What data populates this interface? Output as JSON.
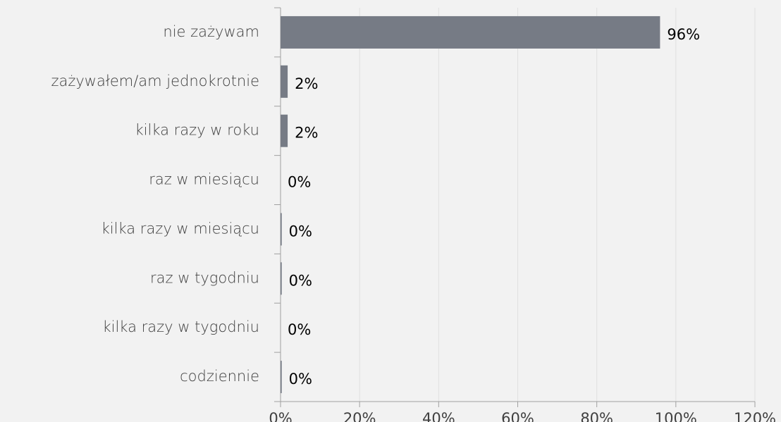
{
  "chart_data": {
    "type": "bar",
    "orientation": "horizontal",
    "categories": [
      "nie zażywam",
      "zażywałem/am  jednokrotnie",
      "kilka razy w roku",
      "raz w miesiącu",
      "kilka razy w miesiącu",
      "raz w tygodniu",
      "kilka razy w tygodniu",
      "codziennie"
    ],
    "values": [
      96,
      1.8,
      1.8,
      0,
      0.3,
      0.3,
      0,
      0.3
    ],
    "value_labels": [
      "96%",
      "2%",
      "2%",
      "0%",
      "0%",
      "0%",
      "0%",
      "0%"
    ],
    "color": "#767b85",
    "xlim": [
      0,
      120
    ],
    "xticks": [
      {
        "value": 0,
        "label": "0%"
      },
      {
        "value": 20,
        "label": "20%"
      },
      {
        "value": 40,
        "label": "40%"
      },
      {
        "value": 60,
        "label": "60%"
      },
      {
        "value": 80,
        "label": "80%"
      },
      {
        "value": 100,
        "label": "100%"
      },
      {
        "value": 120,
        "label": "120%"
      }
    ],
    "grid": true
  }
}
